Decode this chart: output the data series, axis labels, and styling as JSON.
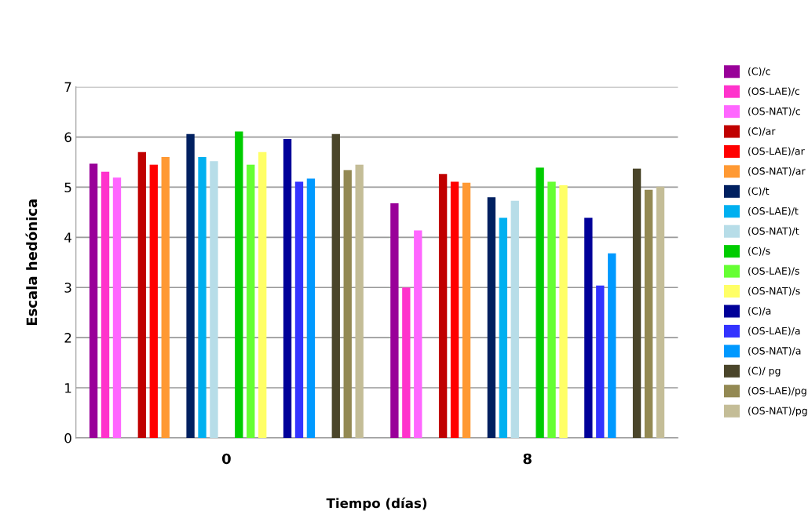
{
  "chart_data": {
    "type": "bar",
    "xlabel": "Tiempo (días)",
    "ylabel": "Escala hedónica",
    "categories": [
      "0",
      "8"
    ],
    "ylim": [
      0,
      7
    ],
    "yticks": [
      0,
      1,
      2,
      3,
      4,
      5,
      6,
      7
    ],
    "grid": "y",
    "legend": "right",
    "series": [
      {
        "name": "(C)/c",
        "color": "#990099",
        "values": [
          5.47,
          4.68
        ]
      },
      {
        "name": "(OS-LAE)/c",
        "color": "#ff33cc",
        "values": [
          5.31,
          3.0
        ]
      },
      {
        "name": "(OS-NAT)/c",
        "color": "#ff66ff",
        "values": [
          5.19,
          4.14
        ]
      },
      {
        "name": "(C)/ar",
        "color": "#c00000",
        "values": [
          5.7,
          5.26
        ]
      },
      {
        "name": "(OS-LAE)/ar",
        "color": "#ff0000",
        "values": [
          5.45,
          5.11
        ]
      },
      {
        "name": "(OS-NAT)/ar",
        "color": "#ff9933",
        "values": [
          5.6,
          5.09
        ]
      },
      {
        "name": "(C)/t",
        "color": "#002060",
        "values": [
          6.06,
          4.8
        ]
      },
      {
        "name": "(OS-LAE)/t",
        "color": "#00b0f0",
        "values": [
          5.6,
          4.39
        ]
      },
      {
        "name": "(OS-NAT)/t",
        "color": "#b7dde8",
        "values": [
          5.52,
          4.73
        ]
      },
      {
        "name": "(C)/s",
        "color": "#00cc00",
        "values": [
          6.11,
          5.39
        ]
      },
      {
        "name": "(OS-LAE)/s",
        "color": "#66ff33",
        "values": [
          5.45,
          5.11
        ]
      },
      {
        "name": "(OS-NAT)/s",
        "color": "#ffff66",
        "values": [
          5.7,
          5.04
        ]
      },
      {
        "name": "(C)/a",
        "color": "#000099",
        "values": [
          5.96,
          4.39
        ]
      },
      {
        "name": "(OS-LAE)/a",
        "color": "#3333ff",
        "values": [
          5.11,
          3.04
        ]
      },
      {
        "name": "(OS-NAT)/a",
        "color": "#0099ff",
        "values": [
          5.17,
          3.68
        ]
      },
      {
        "name": "(C)/ pg",
        "color": "#4a452a",
        "values": [
          6.06,
          5.37
        ]
      },
      {
        "name": "(OS-LAE)/pg",
        "color": "#938953",
        "values": [
          5.34,
          4.95
        ]
      },
      {
        "name": "(OS-NAT)/pg",
        "color": "#c4bd97",
        "values": [
          5.45,
          5.01
        ]
      }
    ]
  }
}
